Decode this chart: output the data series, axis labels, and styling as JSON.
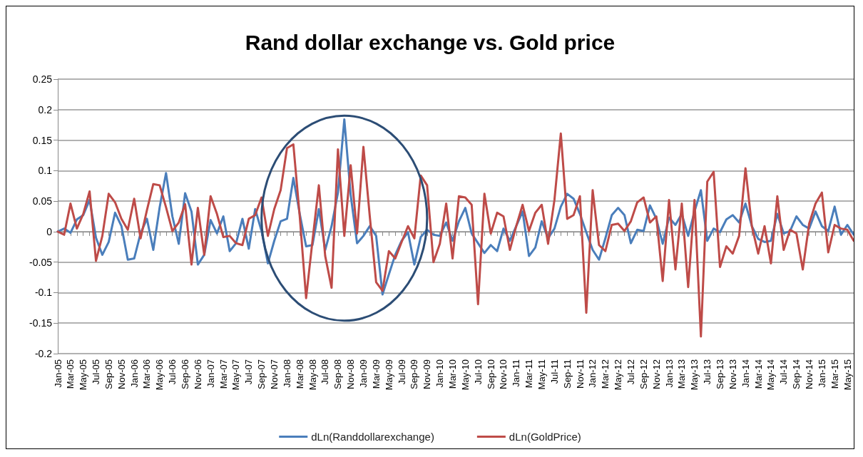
{
  "chart_data": {
    "type": "line",
    "title": "Rand dollar exchange vs. Gold price",
    "categories": [
      "Jan-05",
      null,
      "Mar-05",
      null,
      "May-05",
      null,
      "Jul-05",
      null,
      "Sep-05",
      null,
      "Nov-05",
      null,
      "Jan-06",
      null,
      "Mar-06",
      null,
      "May-06",
      null,
      "Jul-06",
      null,
      "Sep-06",
      null,
      "Nov-06",
      null,
      "Jan-07",
      null,
      "Mar-07",
      null,
      "May-07",
      null,
      "Jul-07",
      null,
      "Sep-07",
      null,
      "Nov-07",
      null,
      "Jan-08",
      null,
      "Mar-08",
      null,
      "May-08",
      null,
      "Jul-08",
      null,
      "Sep-08",
      null,
      "Nov-08",
      null,
      "Jan-09",
      null,
      "Mar-09",
      null,
      "May-09",
      null,
      "Jul-09",
      null,
      "Sep-09",
      null,
      "Nov-09",
      null,
      "Jan-10",
      null,
      "Mar-10",
      null,
      "May-10",
      null,
      "Jul-10",
      null,
      "Sep-10",
      null,
      "Nov-10",
      null,
      "Jan-11",
      null,
      "Mar-11",
      null,
      "May-11",
      null,
      "Jul-11",
      null,
      "Sep-11",
      null,
      "Nov-11",
      null,
      "Jan-12",
      null,
      "Mar-12",
      null,
      "May-12",
      null,
      "Jul-12",
      null,
      "Sep-12",
      null,
      "Nov-12",
      null,
      "Jan-13",
      null,
      "Mar-13",
      null,
      "May-13",
      null,
      "Jul-13",
      null,
      "Sep-13",
      null,
      "Nov-13",
      null,
      "Jan-14",
      null,
      "Mar-14",
      null,
      "May-14",
      null,
      "Jul-14",
      null,
      "Sep-14",
      null,
      "Nov-14",
      null,
      "Jan-15",
      null,
      "Mar-15",
      null,
      "May-15",
      null
    ],
    "series": [
      {
        "name": "dLn(Randdollarexchange)",
        "color": "#4a7ebb",
        "values": [
          0,
          0.005,
          -0.002,
          0.02,
          0.027,
          0.052,
          -0.01,
          -0.038,
          -0.017,
          0.031,
          0.009,
          -0.046,
          -0.044,
          -0.003,
          0.021,
          -0.03,
          0.04,
          0.096,
          0.025,
          -0.02,
          0.063,
          0.033,
          -0.054,
          -0.038,
          0.019,
          -0.003,
          0.025,
          -0.032,
          -0.019,
          0.021,
          -0.028,
          0.037,
          0.001,
          -0.052,
          -0.015,
          0.017,
          0.021,
          0.088,
          0.029,
          -0.024,
          -0.022,
          0.037,
          -0.03,
          0.009,
          0.064,
          0.184,
          0.06,
          -0.019,
          -0.007,
          0.009,
          -0.007,
          -0.103,
          -0.07,
          -0.038,
          -0.015,
          -0.001,
          -0.054,
          -0.009,
          0.003,
          -0.005,
          -0.007,
          0.015,
          -0.015,
          0.017,
          0.039,
          -0.003,
          -0.019,
          -0.035,
          -0.022,
          -0.032,
          0.005,
          -0.015,
          0.009,
          0.033,
          -0.04,
          -0.026,
          0.017,
          -0.011,
          0.005,
          0.041,
          0.062,
          0.054,
          0.029,
          -0.001,
          -0.03,
          -0.046,
          -0.011,
          0.027,
          0.039,
          0.027,
          -0.019,
          0.003,
          0.001,
          0.043,
          0.021,
          -0.02,
          0.023,
          0.011,
          0.029,
          -0.007,
          0.033,
          0.068,
          -0.015,
          0.005,
          -0.001,
          0.02,
          0.027,
          0.015,
          0.046,
          0.009,
          -0.012,
          -0.017,
          -0.015,
          0.029,
          -0.003,
          0.001,
          0.025,
          0.011,
          0.005,
          0.033,
          0.009,
          0.001,
          0.041,
          -0.005,
          0.011,
          -0.005
        ]
      },
      {
        "name": "dLn(GoldPrice)",
        "color": "#be4b48",
        "values": [
          0,
          -0.005,
          0.046,
          0.005,
          0.029,
          0.066,
          -0.048,
          -0.007,
          0.062,
          0.048,
          0.021,
          0.003,
          0.054,
          -0.011,
          0.035,
          0.078,
          0.076,
          0.04,
          0.001,
          0.015,
          0.045,
          -0.054,
          0.039,
          -0.038,
          0.058,
          0.029,
          -0.009,
          -0.007,
          -0.019,
          -0.022,
          0.021,
          0.027,
          0.056,
          -0.007,
          0.037,
          0.068,
          0.137,
          0.143,
          0.025,
          -0.109,
          -0.015,
          0.076,
          -0.04,
          -0.092,
          0.135,
          -0.007,
          0.109,
          -0.003,
          0.139,
          0.025,
          -0.083,
          -0.097,
          -0.032,
          -0.044,
          -0.017,
          0.009,
          -0.011,
          0.092,
          0.076,
          -0.05,
          -0.02,
          0.046,
          -0.044,
          0.058,
          0.056,
          0.044,
          -0.119,
          0.062,
          -0.003,
          0.031,
          0.025,
          -0.03,
          0.009,
          0.044,
          0.001,
          0.031,
          0.044,
          -0.02,
          0.052,
          0.161,
          0.021,
          0.027,
          0.058,
          -0.133,
          0.068,
          -0.022,
          -0.032,
          0.011,
          0.013,
          0.001,
          0.017,
          0.048,
          0.056,
          0.015,
          0.025,
          -0.081,
          0.052,
          -0.062,
          0.046,
          -0.091,
          0.052,
          -0.172,
          0.082,
          0.098,
          -0.058,
          -0.024,
          -0.036,
          -0.007,
          0.104,
          0.009,
          -0.036,
          0.009,
          -0.052,
          0.058,
          -0.03,
          0.003,
          -0.003,
          -0.062,
          0.013,
          0.046,
          0.064,
          -0.034,
          0.011,
          0.005,
          0.003,
          -0.015
        ]
      }
    ],
    "ylim": [
      -0.2,
      0.25
    ],
    "yticks": [
      -0.2,
      -0.15,
      -0.1,
      -0.05,
      0,
      0.05,
      0.1,
      0.15,
      0.2,
      0.25
    ],
    "grid": "y",
    "legend": "bottom",
    "marker": "none",
    "line_style": "solid"
  }
}
